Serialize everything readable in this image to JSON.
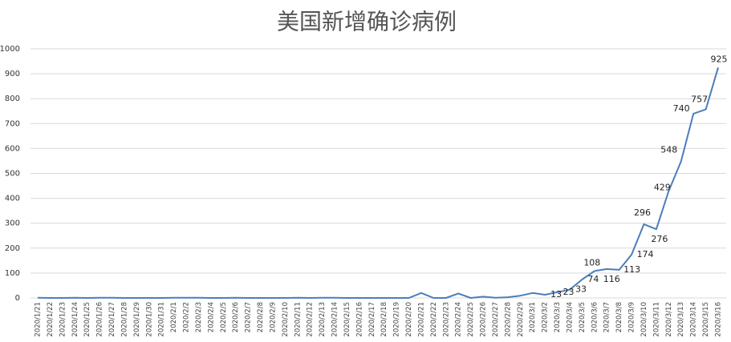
{
  "chart_data": {
    "type": "line",
    "title": "美国新增确诊病例",
    "categories": [
      "2020/1/21",
      "2020/1/22",
      "2020/1/23",
      "2020/1/24",
      "2020/1/25",
      "2020/1/26",
      "2020/1/27",
      "2020/1/28",
      "2020/1/29",
      "2020/1/30",
      "2020/1/31",
      "2020/2/1",
      "2020/2/2",
      "2020/2/3",
      "2020/2/4",
      "2020/2/5",
      "2020/2/6",
      "2020/2/7",
      "2020/2/8",
      "2020/2/9",
      "2020/2/10",
      "2020/2/11",
      "2020/2/12",
      "2020/2/13",
      "2020/2/14",
      "2020/2/15",
      "2020/2/16",
      "2020/2/17",
      "2020/2/18",
      "2020/2/19",
      "2020/2/20",
      "2020/2/21",
      "2020/2/22",
      "2020/2/23",
      "2020/2/24",
      "2020/2/25",
      "2020/2/26",
      "2020/2/27",
      "2020/2/28",
      "2020/2/29",
      "2020/3/1",
      "2020/3/2",
      "2020/3/3",
      "2020/3/4",
      "2020/3/5",
      "2020/3/6",
      "2020/3/7",
      "2020/3/8",
      "2020/3/9",
      "2020/3/10",
      "2020/3/11",
      "2020/3/12",
      "2020/3/13",
      "2020/3/14",
      "2020/3/15",
      "2020/3/16"
    ],
    "values": [
      1,
      0,
      0,
      1,
      0,
      1,
      1,
      0,
      0,
      0,
      0,
      1,
      1,
      1,
      0,
      0,
      1,
      0,
      0,
      0,
      0,
      1,
      0,
      1,
      1,
      0,
      0,
      0,
      0,
      0,
      0,
      20,
      0,
      0,
      18,
      0,
      5,
      1,
      3,
      9,
      20,
      13,
      23,
      33,
      74,
      108,
      116,
      113,
      174,
      296,
      276,
      429,
      548,
      740,
      757,
      925
    ],
    "value_labels": [
      null,
      null,
      null,
      null,
      null,
      null,
      null,
      null,
      null,
      null,
      null,
      null,
      null,
      null,
      null,
      null,
      null,
      null,
      null,
      null,
      null,
      null,
      null,
      null,
      null,
      null,
      null,
      null,
      null,
      null,
      null,
      null,
      null,
      null,
      null,
      null,
      null,
      null,
      null,
      null,
      null,
      "13",
      "23",
      "33",
      "74",
      "108",
      "116",
      "113",
      "174",
      "296",
      "276",
      "429",
      "548",
      "740",
      "757",
      "925"
    ],
    "color": "#4a7ebb",
    "ylim": [
      0,
      1000
    ],
    "yticks": [
      0,
      100,
      200,
      300,
      400,
      500,
      600,
      700,
      800,
      900,
      1000
    ],
    "grid": true
  }
}
